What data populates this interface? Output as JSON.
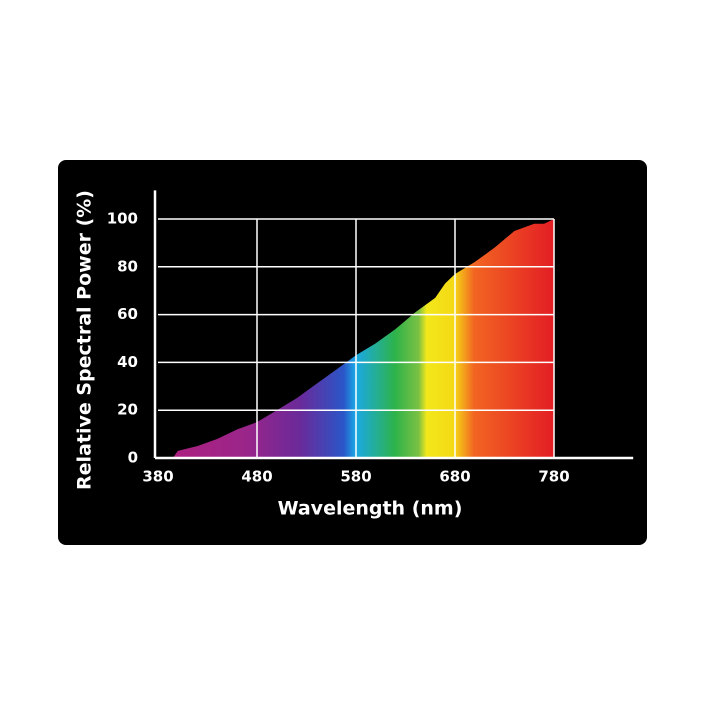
{
  "chart_data": {
    "type": "area",
    "xlabel": "Wavelength (nm)",
    "ylabel": "Relative Spectral Power (%)",
    "x": [
      395,
      400,
      420,
      440,
      460,
      480,
      500,
      520,
      540,
      560,
      580,
      600,
      620,
      640,
      660,
      670,
      680,
      700,
      720,
      740,
      760,
      770,
      780
    ],
    "values": [
      0,
      3,
      5,
      8,
      12,
      15,
      20,
      25,
      31,
      37,
      43,
      48,
      54,
      61,
      67,
      73,
      77,
      82,
      88,
      95,
      98,
      98,
      100
    ],
    "xlim": [
      380,
      860
    ],
    "ylim": [
      0,
      112
    ],
    "xticks": [
      380,
      480,
      580,
      680,
      780
    ],
    "yticks": [
      0,
      20,
      40,
      60,
      80,
      100
    ],
    "grid": true
  }
}
